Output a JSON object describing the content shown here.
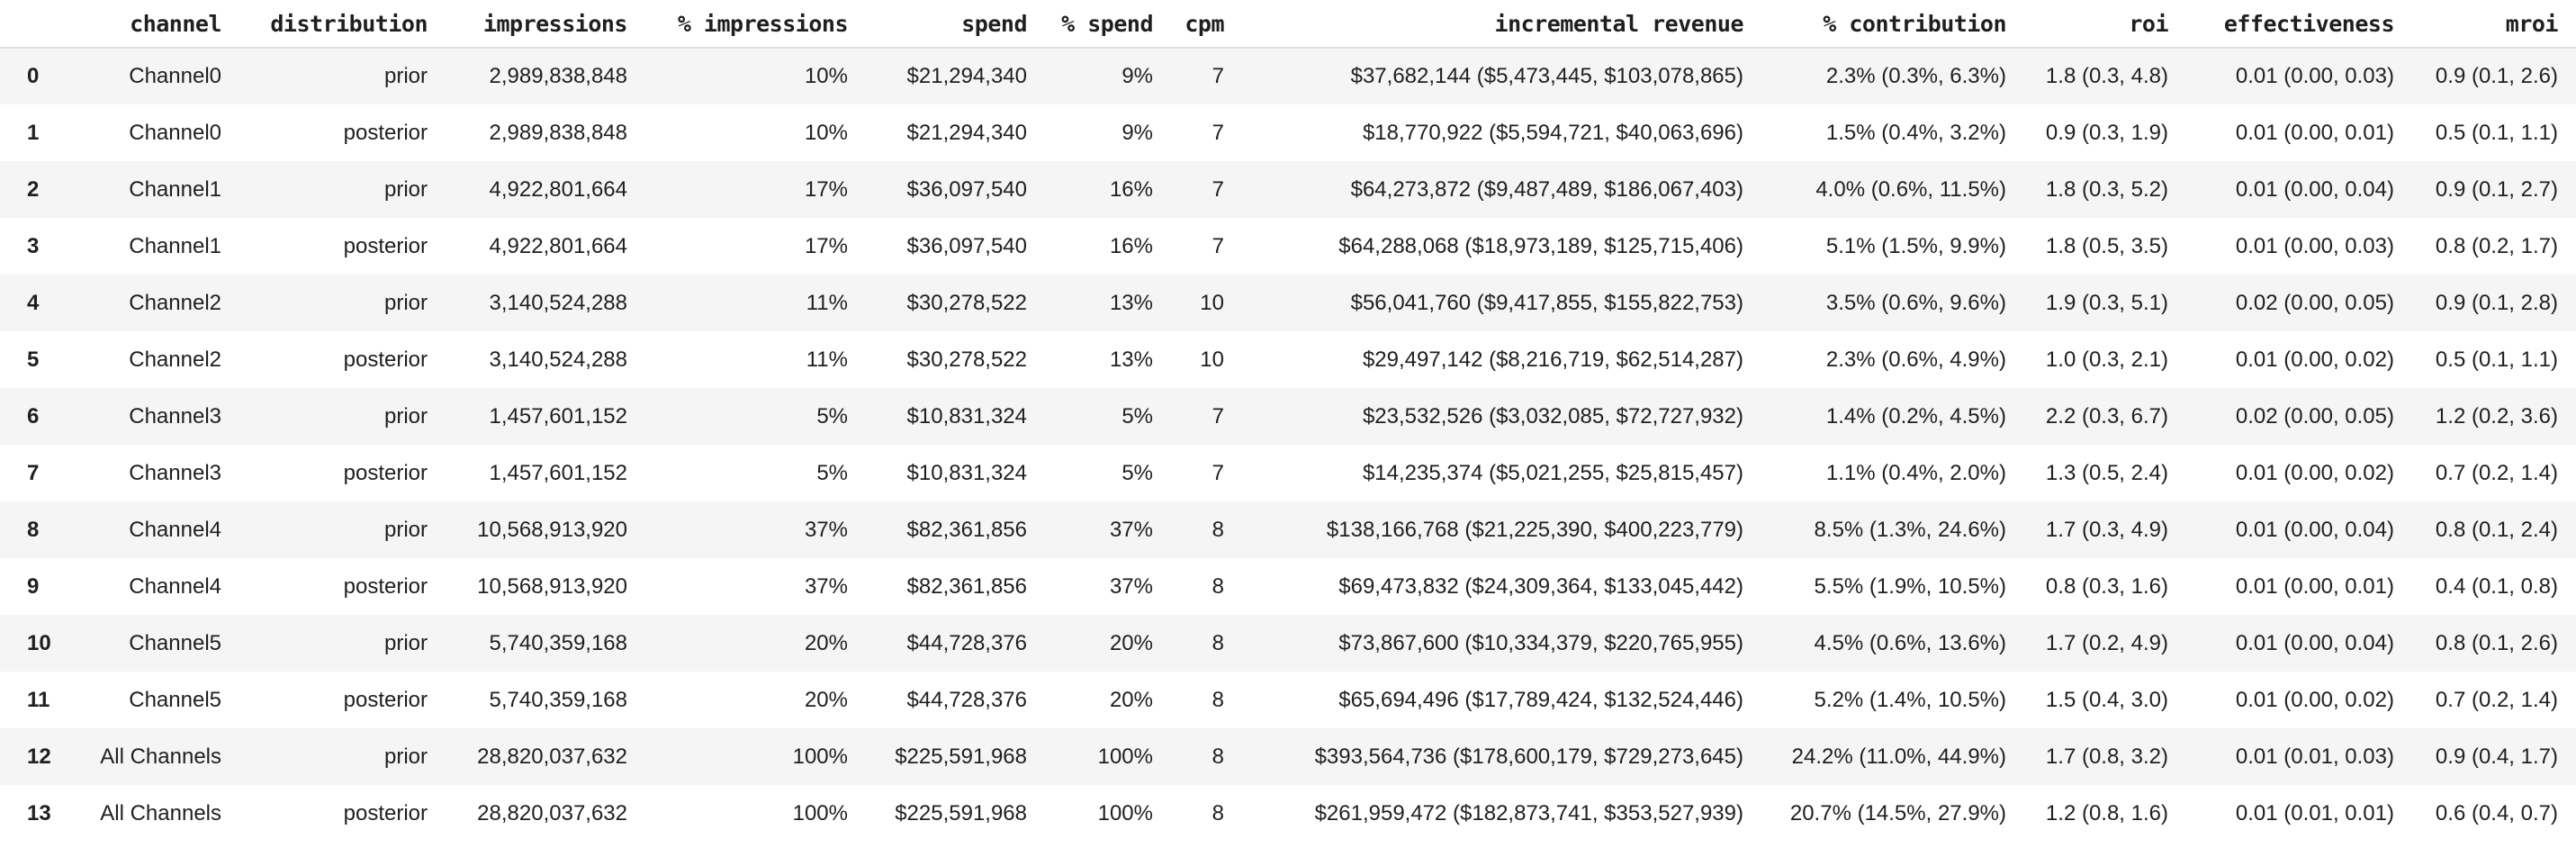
{
  "colors": {
    "text": "#1f1f1f",
    "row_stripe": "#f5f5f5",
    "header_border": "#e1e1e1",
    "background": "#ffffff"
  },
  "table": {
    "columns": [
      {
        "key": "index",
        "label": ""
      },
      {
        "key": "channel",
        "label": "channel"
      },
      {
        "key": "distribution",
        "label": "distribution"
      },
      {
        "key": "impressions",
        "label": "impressions"
      },
      {
        "key": "pct-impressions",
        "label": "% impressions"
      },
      {
        "key": "spend",
        "label": "spend"
      },
      {
        "key": "pct-spend",
        "label": "% spend"
      },
      {
        "key": "cpm",
        "label": "cpm"
      },
      {
        "key": "incremental-revenue",
        "label": "incremental revenue"
      },
      {
        "key": "pct-contribution",
        "label": "% contribution"
      },
      {
        "key": "roi",
        "label": "roi"
      },
      {
        "key": "effectiveness",
        "label": "effectiveness"
      },
      {
        "key": "mroi",
        "label": "mroi"
      }
    ],
    "rows": [
      [
        "0",
        "Channel0",
        "prior",
        "2,989,838,848",
        "10%",
        "$21,294,340",
        "9%",
        "7",
        "$37,682,144 ($5,473,445, $103,078,865)",
        "2.3% (0.3%, 6.3%)",
        "1.8 (0.3, 4.8)",
        "0.01 (0.00, 0.03)",
        "0.9 (0.1, 2.6)"
      ],
      [
        "1",
        "Channel0",
        "posterior",
        "2,989,838,848",
        "10%",
        "$21,294,340",
        "9%",
        "7",
        "$18,770,922 ($5,594,721, $40,063,696)",
        "1.5% (0.4%, 3.2%)",
        "0.9 (0.3, 1.9)",
        "0.01 (0.00, 0.01)",
        "0.5 (0.1, 1.1)"
      ],
      [
        "2",
        "Channel1",
        "prior",
        "4,922,801,664",
        "17%",
        "$36,097,540",
        "16%",
        "7",
        "$64,273,872 ($9,487,489, $186,067,403)",
        "4.0% (0.6%, 11.5%)",
        "1.8 (0.3, 5.2)",
        "0.01 (0.00, 0.04)",
        "0.9 (0.1, 2.7)"
      ],
      [
        "3",
        "Channel1",
        "posterior",
        "4,922,801,664",
        "17%",
        "$36,097,540",
        "16%",
        "7",
        "$64,288,068 ($18,973,189, $125,715,406)",
        "5.1% (1.5%, 9.9%)",
        "1.8 (0.5, 3.5)",
        "0.01 (0.00, 0.03)",
        "0.8 (0.2, 1.7)"
      ],
      [
        "4",
        "Channel2",
        "prior",
        "3,140,524,288",
        "11%",
        "$30,278,522",
        "13%",
        "10",
        "$56,041,760 ($9,417,855, $155,822,753)",
        "3.5% (0.6%, 9.6%)",
        "1.9 (0.3, 5.1)",
        "0.02 (0.00, 0.05)",
        "0.9 (0.1, 2.8)"
      ],
      [
        "5",
        "Channel2",
        "posterior",
        "3,140,524,288",
        "11%",
        "$30,278,522",
        "13%",
        "10",
        "$29,497,142 ($8,216,719, $62,514,287)",
        "2.3% (0.6%, 4.9%)",
        "1.0 (0.3, 2.1)",
        "0.01 (0.00, 0.02)",
        "0.5 (0.1, 1.1)"
      ],
      [
        "6",
        "Channel3",
        "prior",
        "1,457,601,152",
        "5%",
        "$10,831,324",
        "5%",
        "7",
        "$23,532,526 ($3,032,085, $72,727,932)",
        "1.4% (0.2%, 4.5%)",
        "2.2 (0.3, 6.7)",
        "0.02 (0.00, 0.05)",
        "1.2 (0.2, 3.6)"
      ],
      [
        "7",
        "Channel3",
        "posterior",
        "1,457,601,152",
        "5%",
        "$10,831,324",
        "5%",
        "7",
        "$14,235,374 ($5,021,255, $25,815,457)",
        "1.1% (0.4%, 2.0%)",
        "1.3 (0.5, 2.4)",
        "0.01 (0.00, 0.02)",
        "0.7 (0.2, 1.4)"
      ],
      [
        "8",
        "Channel4",
        "prior",
        "10,568,913,920",
        "37%",
        "$82,361,856",
        "37%",
        "8",
        "$138,166,768 ($21,225,390, $400,223,779)",
        "8.5% (1.3%, 24.6%)",
        "1.7 (0.3, 4.9)",
        "0.01 (0.00, 0.04)",
        "0.8 (0.1, 2.4)"
      ],
      [
        "9",
        "Channel4",
        "posterior",
        "10,568,913,920",
        "37%",
        "$82,361,856",
        "37%",
        "8",
        "$69,473,832 ($24,309,364, $133,045,442)",
        "5.5% (1.9%, 10.5%)",
        "0.8 (0.3, 1.6)",
        "0.01 (0.00, 0.01)",
        "0.4 (0.1, 0.8)"
      ],
      [
        "10",
        "Channel5",
        "prior",
        "5,740,359,168",
        "20%",
        "$44,728,376",
        "20%",
        "8",
        "$73,867,600 ($10,334,379, $220,765,955)",
        "4.5% (0.6%, 13.6%)",
        "1.7 (0.2, 4.9)",
        "0.01 (0.00, 0.04)",
        "0.8 (0.1, 2.6)"
      ],
      [
        "11",
        "Channel5",
        "posterior",
        "5,740,359,168",
        "20%",
        "$44,728,376",
        "20%",
        "8",
        "$65,694,496 ($17,789,424, $132,524,446)",
        "5.2% (1.4%, 10.5%)",
        "1.5 (0.4, 3.0)",
        "0.01 (0.00, 0.02)",
        "0.7 (0.2, 1.4)"
      ],
      [
        "12",
        "All Channels",
        "prior",
        "28,820,037,632",
        "100%",
        "$225,591,968",
        "100%",
        "8",
        "$393,564,736 ($178,600,179, $729,273,645)",
        "24.2% (11.0%, 44.9%)",
        "1.7 (0.8, 3.2)",
        "0.01 (0.01, 0.03)",
        "0.9 (0.4, 1.7)"
      ],
      [
        "13",
        "All Channels",
        "posterior",
        "28,820,037,632",
        "100%",
        "$225,591,968",
        "100%",
        "8",
        "$261,959,472 ($182,873,741, $353,527,939)",
        "20.7% (14.5%, 27.9%)",
        "1.2 (0.8, 1.6)",
        "0.01 (0.01, 0.01)",
        "0.6 (0.4, 0.7)"
      ]
    ]
  }
}
